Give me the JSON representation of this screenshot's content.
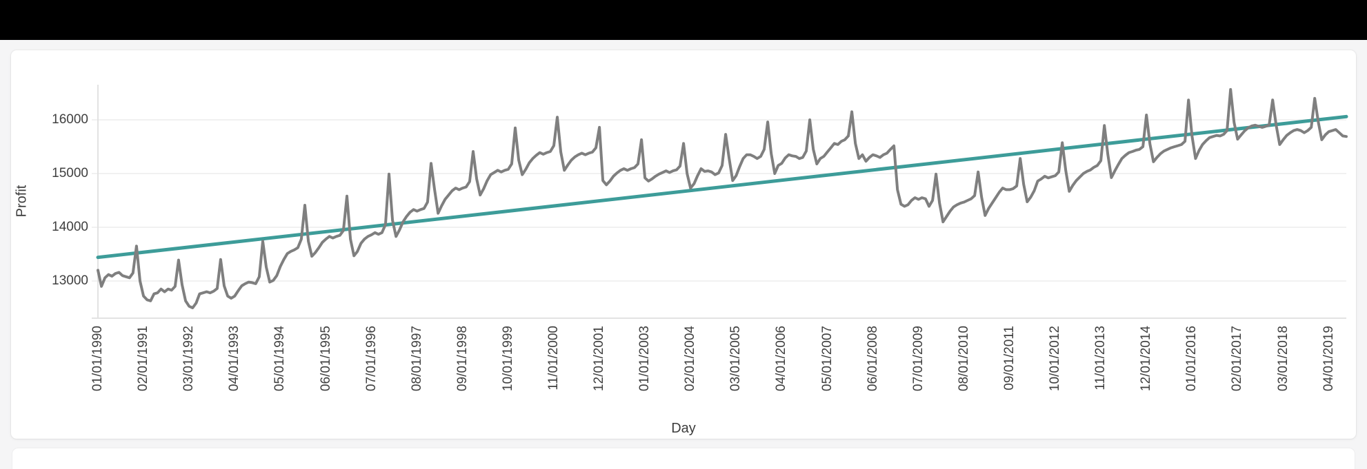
{
  "page": {
    "topbar_color": "#000000",
    "background_color": "#f5f5f6",
    "card_color": "#ffffff"
  },
  "chart_data": {
    "type": "line",
    "title": "",
    "xlabel": "Day",
    "ylabel": "Profit",
    "grid": "horizontal",
    "legend": "none",
    "y_gridlines": [
      13000,
      14000,
      15000,
      16000
    ],
    "y_range": [
      12308,
      16654
    ],
    "x_tick_every": 13,
    "x_tick_labels": [
      "01/01/1990",
      "02/01/1991",
      "03/01/1992",
      "04/01/1993",
      "05/01/1994",
      "06/01/1995",
      "07/01/1996",
      "08/01/1997",
      "09/01/1998",
      "10/01/1999",
      "11/01/2000",
      "12/01/2001",
      "01/01/2003",
      "02/01/2004",
      "03/01/2005",
      "04/01/2006",
      "05/01/2007",
      "06/01/2008",
      "07/01/2009",
      "08/01/2010",
      "09/01/2011",
      "10/01/2012",
      "11/01/2013",
      "12/01/2014",
      "01/01/2016",
      "02/01/2017",
      "03/01/2018",
      "04/01/2019"
    ],
    "series": [
      {
        "name": "Profit",
        "color": "#7f7f7f",
        "start_month": "01/1990",
        "frequency": "monthly",
        "values": [
          13200,
          12900,
          13060,
          13120,
          13090,
          13140,
          13160,
          13100,
          13080,
          13060,
          13150,
          13650,
          13000,
          12720,
          12650,
          12630,
          12760,
          12780,
          12850,
          12800,
          12850,
          12830,
          12900,
          13390,
          12930,
          12630,
          12530,
          12500,
          12590,
          12760,
          12780,
          12800,
          12780,
          12810,
          12860,
          13400,
          12910,
          12720,
          12680,
          12720,
          12820,
          12910,
          12950,
          12980,
          12970,
          12950,
          13080,
          13740,
          13260,
          12980,
          13010,
          13100,
          13270,
          13400,
          13510,
          13550,
          13580,
          13620,
          13780,
          14410,
          13740,
          13460,
          13530,
          13620,
          13720,
          13780,
          13830,
          13800,
          13830,
          13850,
          13940,
          14580,
          13780,
          13470,
          13550,
          13700,
          13780,
          13830,
          13860,
          13900,
          13870,
          13900,
          14050,
          14990,
          14130,
          13830,
          13950,
          14100,
          14200,
          14280,
          14330,
          14300,
          14330,
          14350,
          14470,
          15190,
          14700,
          14260,
          14400,
          14520,
          14600,
          14680,
          14730,
          14700,
          14730,
          14750,
          14850,
          15410,
          14900,
          14600,
          14720,
          14870,
          14980,
          15020,
          15060,
          15030,
          15060,
          15080,
          15180,
          15850,
          15250,
          14980,
          15080,
          15200,
          15280,
          15340,
          15390,
          15360,
          15390,
          15410,
          15520,
          16050,
          15400,
          15060,
          15160,
          15250,
          15310,
          15350,
          15380,
          15350,
          15380,
          15400,
          15480,
          15860,
          14870,
          14790,
          14860,
          14950,
          15010,
          15060,
          15090,
          15060,
          15090,
          15110,
          15180,
          15630,
          14920,
          14860,
          14900,
          14950,
          14990,
          15020,
          15050,
          15020,
          15050,
          15070,
          15140,
          15560,
          15000,
          14730,
          14810,
          14960,
          15090,
          15040,
          15050,
          15030,
          14980,
          15010,
          15150,
          15730,
          15280,
          14870,
          14960,
          15130,
          15280,
          15350,
          15350,
          15320,
          15280,
          15320,
          15450,
          15960,
          15370,
          15000,
          15150,
          15190,
          15290,
          15350,
          15330,
          15320,
          15280,
          15300,
          15420,
          16000,
          15450,
          15180,
          15280,
          15320,
          15400,
          15480,
          15560,
          15540,
          15600,
          15630,
          15700,
          16150,
          15560,
          15280,
          15350,
          15230,
          15300,
          15350,
          15330,
          15300,
          15350,
          15380,
          15450,
          15515,
          14700,
          14430,
          14390,
          14420,
          14500,
          14550,
          14520,
          14550,
          14530,
          14390,
          14500,
          14990,
          14450,
          14100,
          14200,
          14300,
          14380,
          14420,
          14450,
          14470,
          14500,
          14530,
          14590,
          15030,
          14560,
          14220,
          14350,
          14450,
          14550,
          14650,
          14730,
          14700,
          14700,
          14720,
          14770,
          15280,
          14800,
          14475,
          14560,
          14680,
          14860,
          14900,
          14950,
          14920,
          14940,
          14960,
          15030,
          15575,
          15050,
          14670,
          14780,
          14870,
          14935,
          15000,
          15040,
          15065,
          15115,
          15150,
          15240,
          15895,
          15350,
          14925,
          15050,
          15170,
          15280,
          15340,
          15390,
          15410,
          15435,
          15450,
          15500,
          16090,
          15550,
          15220,
          15300,
          15370,
          15420,
          15450,
          15480,
          15500,
          15520,
          15540,
          15600,
          16370,
          15700,
          15280,
          15430,
          15540,
          15610,
          15670,
          15690,
          15710,
          15700,
          15730,
          15800,
          16565,
          15950,
          15640,
          15720,
          15795,
          15850,
          15885,
          15900,
          15880,
          15860,
          15880,
          15900,
          16370,
          15900,
          15540,
          15630,
          15710,
          15760,
          15800,
          15820,
          15800,
          15760,
          15800,
          15860,
          16400,
          15965,
          15630,
          15720,
          15780,
          15800,
          15820,
          15760,
          15700,
          15690
        ]
      },
      {
        "name": "Trend",
        "type": "linear",
        "color": "#3d9c99",
        "start": 13440,
        "end": 16060
      }
    ]
  }
}
